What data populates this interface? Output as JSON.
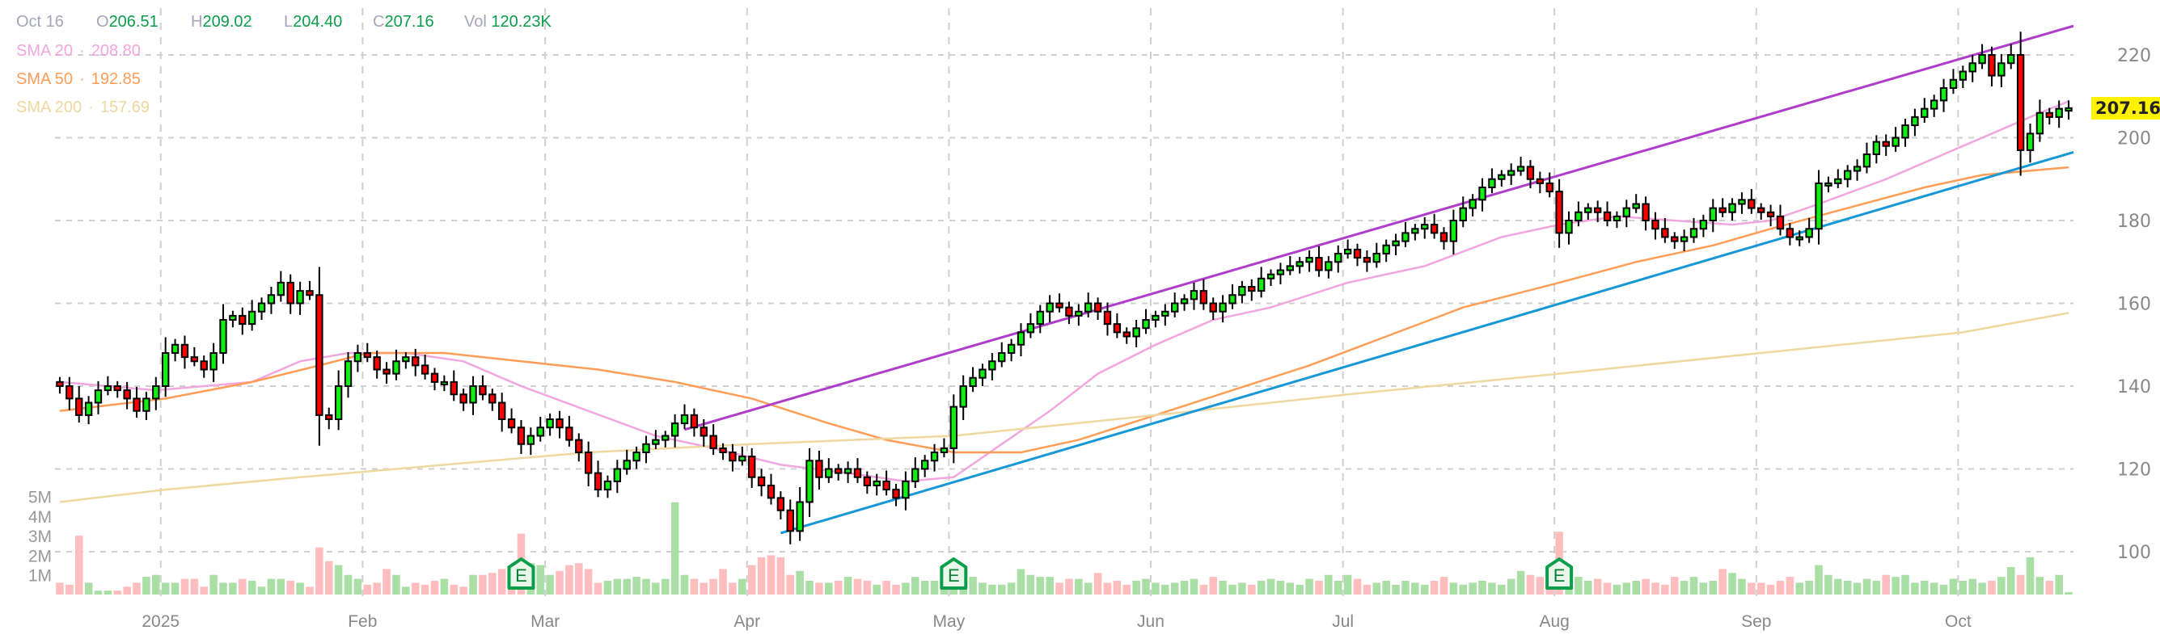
{
  "header": {
    "date": "Oct 16",
    "open_label": "O",
    "open": "206.51",
    "high_label": "H",
    "high": "209.02",
    "low_label": "L",
    "low": "204.40",
    "close_label": "C",
    "close": "207.16",
    "vol_label": "Vol",
    "volume": "120.23K"
  },
  "indicators": [
    {
      "name": "SMA 20",
      "value": "208.80",
      "color": "#f2a6df"
    },
    {
      "name": "SMA 50",
      "value": "192.85",
      "color": "#ff9d57"
    },
    {
      "name": "SMA 200",
      "value": "157.69",
      "color": "#f0d79f"
    }
  ],
  "last_price_label": "207.16",
  "earnings_marker_label": "E",
  "chart_data": {
    "type": "candlestick",
    "price_axis": {
      "ticks": [
        220,
        200,
        180,
        160,
        140,
        120,
        100
      ],
      "tick_labels": [
        "220",
        "200",
        "180",
        "160",
        "140",
        "120",
        "100"
      ],
      "range": [
        100,
        220
      ]
    },
    "volume_axis": {
      "tick_labels": [
        "5M",
        "4M",
        "3M",
        "2M",
        "1M"
      ],
      "ticks": [
        5,
        4,
        3,
        2,
        1
      ]
    },
    "months": [
      {
        "label": "2025",
        "start_index": 11
      },
      {
        "label": "Feb",
        "start_index": 32
      },
      {
        "label": "Mar",
        "start_index": 51
      },
      {
        "label": "Apr",
        "start_index": 72
      },
      {
        "label": "May",
        "start_index": 93
      },
      {
        "label": "Jun",
        "start_index": 114
      },
      {
        "label": "Jul",
        "start_index": 134
      },
      {
        "label": "Aug",
        "start_index": 156
      },
      {
        "label": "Sep",
        "start_index": 177
      },
      {
        "label": "Oct",
        "start_index": 198
      }
    ],
    "first_open": 141,
    "last_open": 206.51,
    "last_high": 209.02,
    "last_low": 204.4,
    "closes": [
      140,
      137,
      133,
      136,
      139,
      140,
      139,
      137,
      134,
      137,
      140,
      148,
      150,
      147,
      146,
      144,
      148,
      156,
      157,
      155,
      158,
      160,
      162,
      165,
      160,
      163,
      162,
      133,
      132,
      140,
      146,
      148,
      147,
      144,
      143,
      146,
      147,
      145,
      143,
      141,
      141,
      138,
      136,
      140,
      138,
      136,
      132,
      130,
      126,
      128,
      130,
      132,
      130,
      127,
      124,
      119,
      115,
      117,
      120,
      122,
      124,
      126,
      127,
      128,
      131,
      133,
      130,
      128,
      125,
      124,
      122,
      123,
      118,
      116,
      113,
      110,
      105,
      112,
      122,
      118,
      120,
      119,
      120,
      118,
      116,
      117,
      115,
      113,
      117,
      120,
      122,
      124,
      125,
      135,
      140,
      142,
      144,
      146,
      148,
      150,
      153,
      155,
      158,
      160,
      159,
      157,
      158,
      160,
      158,
      155,
      153,
      152,
      154,
      156,
      157,
      158,
      160,
      161,
      163,
      160,
      158,
      160,
      162,
      164,
      163,
      166,
      167,
      168,
      169,
      170,
      171,
      168,
      170,
      172,
      173,
      171,
      170,
      172,
      174,
      175,
      177,
      178,
      179,
      177,
      175,
      180,
      183,
      185,
      188,
      190,
      191,
      192,
      193,
      190,
      189,
      187,
      177,
      180,
      182,
      183,
      182,
      180,
      181,
      183,
      184,
      180,
      178,
      176,
      175,
      176,
      178,
      180,
      183,
      182,
      184,
      185,
      183,
      182,
      181,
      178,
      176,
      176,
      178,
      189,
      189,
      190,
      192,
      193,
      196,
      199,
      198,
      200,
      203,
      205,
      207,
      209,
      212,
      214,
      216,
      218,
      220,
      215,
      218,
      220,
      197,
      201,
      206,
      205,
      207,
      207.16
    ],
    "volumes_millions": [
      0.6,
      0.5,
      3.0,
      0.6,
      0.2,
      0.2,
      0.2,
      0.4,
      0.6,
      0.9,
      1.0,
      0.6,
      0.6,
      0.8,
      0.8,
      0.4,
      1.0,
      0.6,
      0.6,
      0.8,
      0.7,
      0.4,
      0.8,
      0.8,
      0.7,
      0.6,
      0.4,
      2.4,
      1.7,
      1.5,
      1.0,
      0.8,
      0.5,
      0.6,
      1.3,
      1.0,
      0.4,
      0.6,
      0.5,
      0.7,
      0.8,
      0.5,
      0.4,
      1.0,
      1.0,
      1.1,
      1.3,
      1.4,
      3.1,
      1.6,
      1.5,
      1.0,
      1.2,
      1.5,
      1.6,
      1.3,
      0.6,
      0.7,
      0.8,
      0.8,
      0.9,
      0.8,
      0.6,
      0.8,
      4.7,
      1.0,
      0.8,
      0.6,
      0.8,
      1.3,
      0.6,
      0.8,
      1.5,
      1.9,
      2.0,
      1.9,
      1.0,
      1.2,
      0.7,
      0.6,
      0.6,
      0.7,
      0.9,
      0.8,
      0.7,
      0.5,
      0.7,
      0.5,
      0.6,
      0.9,
      0.7,
      0.7,
      0.8,
      1.0,
      1.1,
      0.9,
      0.6,
      0.5,
      0.5,
      0.6,
      1.3,
      1.0,
      0.9,
      0.9,
      0.6,
      0.8,
      0.8,
      0.6,
      1.1,
      0.6,
      0.7,
      0.5,
      0.7,
      0.8,
      0.6,
      0.5,
      0.6,
      0.7,
      0.8,
      0.5,
      0.9,
      0.7,
      0.5,
      0.6,
      0.5,
      0.7,
      0.8,
      0.7,
      0.6,
      0.5,
      0.8,
      0.7,
      1.0,
      0.7,
      1.0,
      0.8,
      0.5,
      0.6,
      0.7,
      0.5,
      0.7,
      0.6,
      0.5,
      0.7,
      0.9,
      0.6,
      0.5,
      0.6,
      0.7,
      0.6,
      0.5,
      0.8,
      1.2,
      1.0,
      0.9,
      1.0,
      3.2,
      1.0,
      0.9,
      0.7,
      0.8,
      0.6,
      0.5,
      0.6,
      0.7,
      0.8,
      0.6,
      0.5,
      0.9,
      0.7,
      0.9,
      0.6,
      0.7,
      1.3,
      1.1,
      0.8,
      0.6,
      0.6,
      0.5,
      0.7,
      0.9,
      0.6,
      0.7,
      1.5,
      1.0,
      0.8,
      0.7,
      0.6,
      0.8,
      0.7,
      1.0,
      0.9,
      1.0,
      0.6,
      0.7,
      0.6,
      0.5,
      0.8,
      0.7,
      0.8,
      0.6,
      0.7,
      0.9,
      1.4,
      1.0,
      1.9,
      0.9,
      0.7,
      1.0,
      0.12
    ],
    "earnings_indices": [
      48,
      93,
      156
    ],
    "sma_series": [
      {
        "name": "SMA 20",
        "color": "#f2a6df",
        "points": [
          [
            0,
            141
          ],
          [
            10,
            139
          ],
          [
            20,
            141
          ],
          [
            25,
            146
          ],
          [
            30,
            148
          ],
          [
            36,
            148
          ],
          [
            42,
            146
          ],
          [
            48,
            140
          ],
          [
            55,
            134
          ],
          [
            62,
            128
          ],
          [
            68,
            125
          ],
          [
            75,
            121
          ],
          [
            82,
            119
          ],
          [
            88,
            117
          ],
          [
            93,
            118
          ],
          [
            98,
            126
          ],
          [
            103,
            134
          ],
          [
            108,
            143
          ],
          [
            114,
            150
          ],
          [
            120,
            156
          ],
          [
            126,
            159
          ],
          [
            134,
            165
          ],
          [
            142,
            169
          ],
          [
            150,
            176
          ],
          [
            156,
            179
          ],
          [
            162,
            181
          ],
          [
            168,
            180
          ],
          [
            174,
            179
          ],
          [
            178,
            180
          ],
          [
            183,
            184
          ],
          [
            190,
            190
          ],
          [
            196,
            196
          ],
          [
            202,
            202
          ],
          [
            206,
            206
          ],
          [
            209,
            208.8
          ]
        ]
      },
      {
        "name": "SMA 50",
        "color": "#ff9d57",
        "points": [
          [
            0,
            134
          ],
          [
            11,
            137
          ],
          [
            20,
            141
          ],
          [
            27,
            145
          ],
          [
            32,
            148
          ],
          [
            40,
            148
          ],
          [
            48,
            146
          ],
          [
            56,
            144
          ],
          [
            64,
            141
          ],
          [
            72,
            137
          ],
          [
            80,
            131
          ],
          [
            86,
            127
          ],
          [
            93,
            124
          ],
          [
            100,
            124
          ],
          [
            106,
            127
          ],
          [
            114,
            133
          ],
          [
            122,
            139
          ],
          [
            130,
            145
          ],
          [
            138,
            152
          ],
          [
            146,
            159
          ],
          [
            156,
            165
          ],
          [
            164,
            170
          ],
          [
            172,
            174
          ],
          [
            178,
            178
          ],
          [
            186,
            183
          ],
          [
            194,
            188
          ],
          [
            200,
            191
          ],
          [
            209,
            192.85
          ]
        ]
      },
      {
        "name": "SMA 200",
        "color": "#f0d79f",
        "points": [
          [
            0,
            112
          ],
          [
            11,
            115
          ],
          [
            25,
            118
          ],
          [
            40,
            121
          ],
          [
            55,
            124
          ],
          [
            72,
            126
          ],
          [
            93,
            128
          ],
          [
            114,
            133
          ],
          [
            134,
            138
          ],
          [
            156,
            143
          ],
          [
            177,
            148
          ],
          [
            198,
            153
          ],
          [
            209,
            157.69
          ]
        ]
      }
    ],
    "trendlines": [
      {
        "name": "upper-channel",
        "color": "#b03ccc",
        "from": [
          65,
          129.5
        ],
        "to": [
          209.5,
          227
        ]
      },
      {
        "name": "support",
        "color": "#1597d8",
        "from": [
          75,
          104.5
        ],
        "to": [
          209.5,
          196.5
        ]
      }
    ]
  }
}
